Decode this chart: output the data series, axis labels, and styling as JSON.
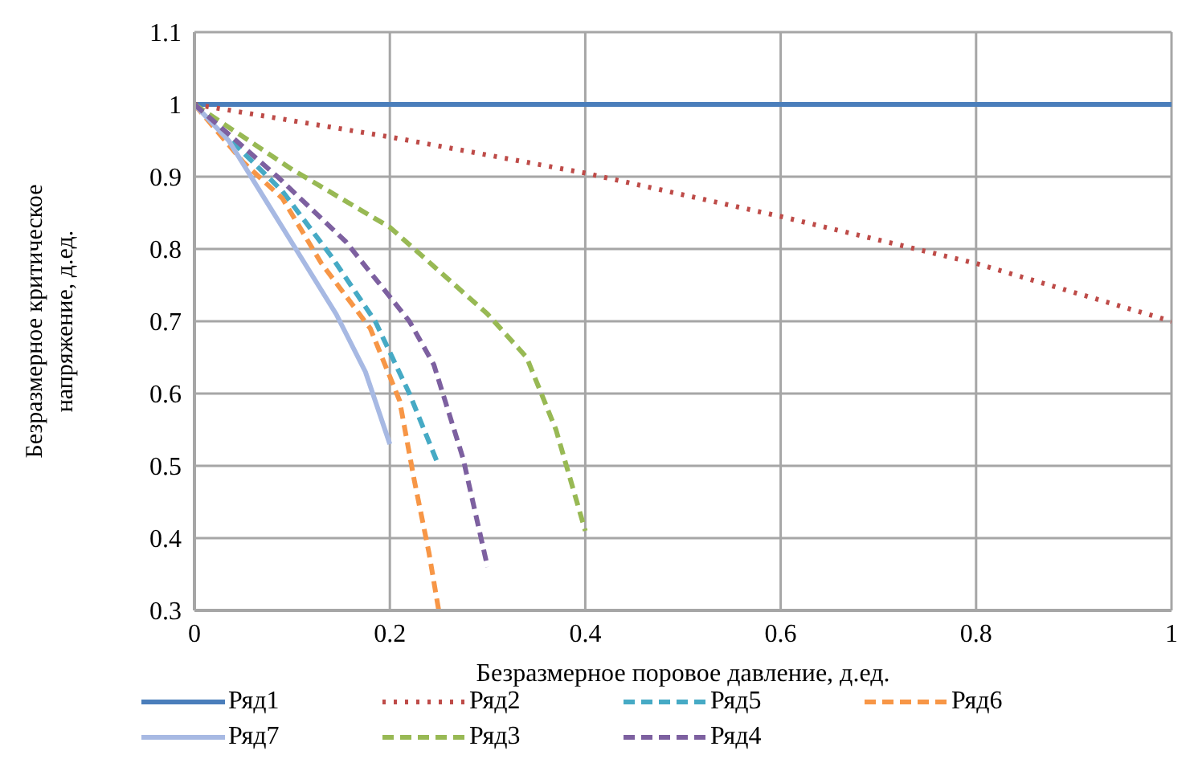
{
  "chart_data": {
    "type": "line",
    "xlabel": "Безразмерное поровое давление, д.ед.",
    "ylabel": "Безразмерное критическое напряжение, д.ед.",
    "xlim": [
      0,
      1
    ],
    "xticks": [
      0,
      0.2,
      0.4,
      0.6,
      0.8,
      1
    ],
    "ylim": [
      0.3,
      1.1
    ],
    "yticks": [
      0.3,
      0.4,
      0.5,
      0.6,
      0.7,
      0.8,
      0.9,
      1,
      1.1
    ],
    "grid": true,
    "legend": "bottom",
    "marker": "none",
    "series": [
      {
        "name": "Ряд1",
        "color": "#4a7ebb",
        "line_style": "solid",
        "x": [
          0,
          1
        ],
        "values": [
          1,
          1
        ]
      },
      {
        "name": "Ряд2",
        "color": "#be4b48",
        "line_style": "dotted",
        "x": [
          0,
          0.2,
          0.4,
          0.6,
          0.8,
          1
        ],
        "values": [
          1,
          0.955,
          0.905,
          0.845,
          0.78,
          0.7
        ]
      },
      {
        "name": "Ряд5",
        "color": "#46aac5",
        "line_style": "dashed",
        "x": [
          0,
          0.09,
          0.14,
          0.185,
          0.22,
          0.25
        ],
        "values": [
          1,
          0.88,
          0.79,
          0.7,
          0.6,
          0.5
        ]
      },
      {
        "name": "Ряд6",
        "color": "#f79646",
        "line_style": "dashed",
        "x": [
          0,
          0.05,
          0.09,
          0.13,
          0.18,
          0.21,
          0.225,
          0.24,
          0.25
        ],
        "values": [
          1,
          0.92,
          0.87,
          0.78,
          0.69,
          0.59,
          0.48,
          0.38,
          0.3
        ]
      },
      {
        "name": "Ряд7",
        "color": "#a7b9e3",
        "line_style": "solid",
        "x": [
          0,
          0.035,
          0.09,
          0.145,
          0.175,
          0.2
        ],
        "values": [
          1,
          0.95,
          0.83,
          0.71,
          0.63,
          0.53
        ]
      },
      {
        "name": "Ряд3",
        "color": "#98b954",
        "line_style": "dashed",
        "x": [
          0,
          0.1,
          0.2,
          0.3,
          0.34,
          0.37,
          0.4
        ],
        "values": [
          1,
          0.91,
          0.83,
          0.71,
          0.65,
          0.55,
          0.41
        ]
      },
      {
        "name": "Ряд4",
        "color": "#7d60a0",
        "line_style": "dashed",
        "x": [
          0,
          0.085,
          0.155,
          0.22,
          0.245,
          0.275,
          0.3
        ],
        "values": [
          1,
          0.9,
          0.81,
          0.7,
          0.64,
          0.51,
          0.36
        ]
      }
    ]
  }
}
